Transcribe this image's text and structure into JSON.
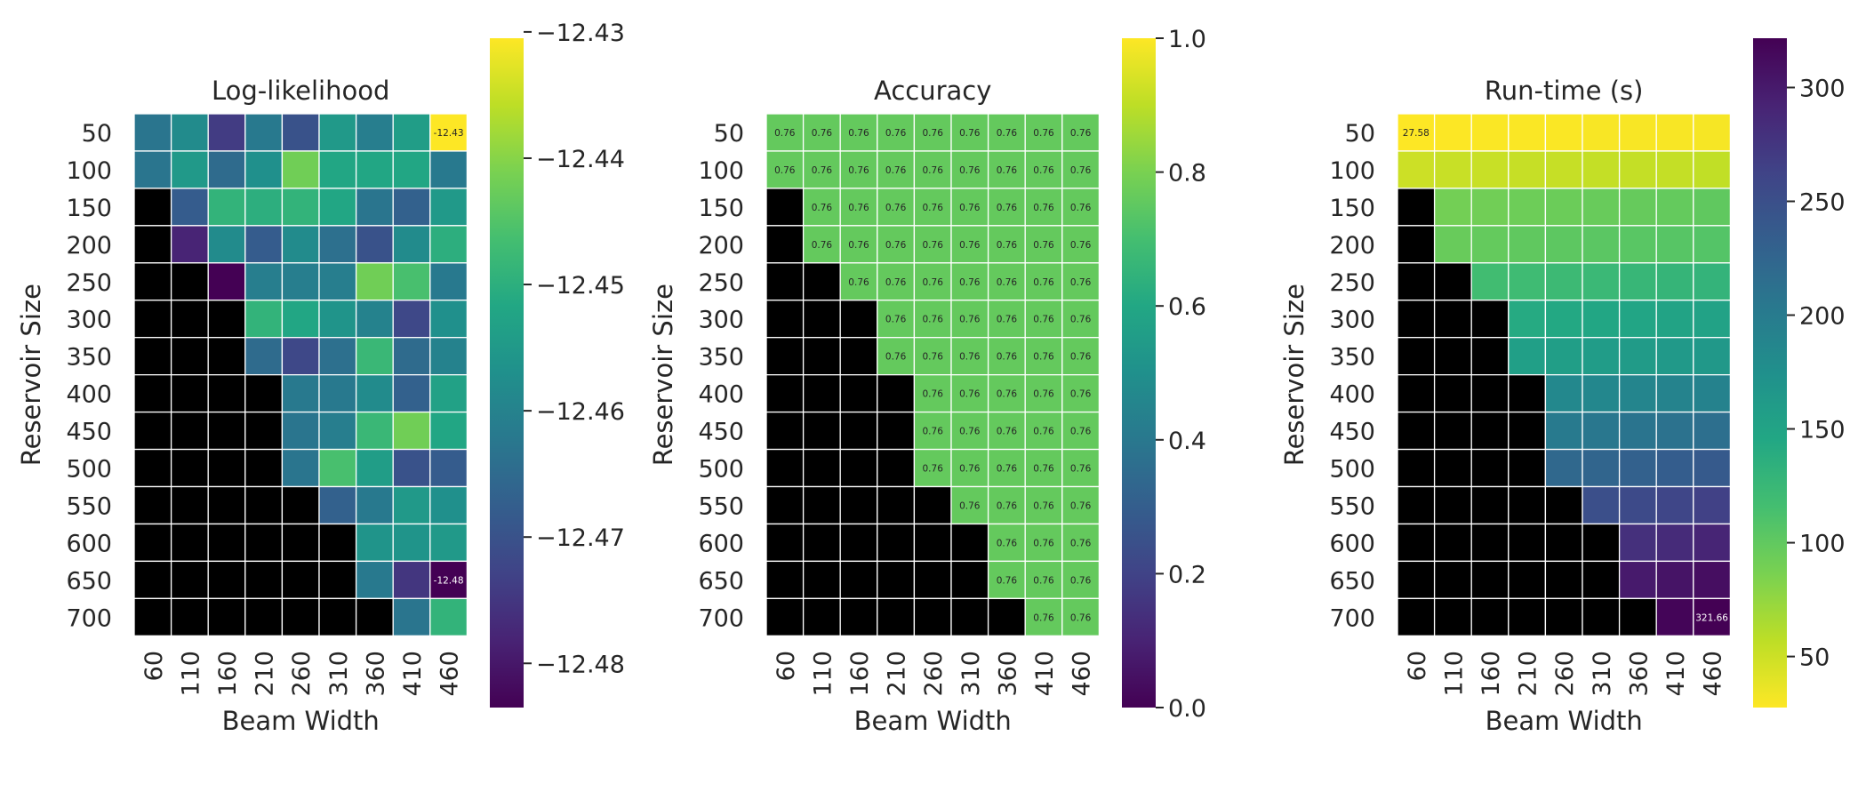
{
  "chart_data": [
    {
      "type": "heatmap",
      "title": "Log-likelihood",
      "xlabel": "Beam Width",
      "ylabel": "Reservoir Size",
      "x": [
        "60",
        "110",
        "160",
        "210",
        "260",
        "310",
        "360",
        "410",
        "460"
      ],
      "y": [
        "50",
        "100",
        "150",
        "200",
        "250",
        "300",
        "350",
        "400",
        "450",
        "500",
        "550",
        "600",
        "650",
        "700"
      ],
      "colormap": "viridis",
      "colorbar": {
        "min": -12.4835,
        "max": -12.4305,
        "ticks": [
          -12.43,
          -12.44,
          -12.45,
          -12.46,
          -12.47,
          -12.48
        ],
        "tick_labels": [
          "−12.43",
          "−12.44",
          "−12.45",
          "−12.46",
          "−12.47",
          "−12.48"
        ]
      },
      "missing_color": "#000000",
      "values": [
        [
          -12.463,
          -12.458,
          -12.474,
          -12.462,
          -12.47,
          -12.455,
          -12.461,
          -12.454,
          -12.4305
        ],
        [
          -12.463,
          -12.455,
          -12.465,
          -12.457,
          -12.442,
          -12.452,
          -12.452,
          -12.452,
          -12.462
        ],
        [
          null,
          -12.468,
          -12.449,
          -12.45,
          -12.449,
          -12.452,
          -12.463,
          -12.467,
          -12.455
        ],
        [
          null,
          -12.478,
          -12.458,
          -12.468,
          -12.458,
          -12.464,
          -12.47,
          -12.458,
          -12.45
        ],
        [
          null,
          null,
          -12.4835,
          -12.461,
          -12.461,
          -12.461,
          -12.442,
          -12.446,
          -12.462
        ],
        [
          null,
          null,
          null,
          -12.449,
          -12.452,
          -12.456,
          -12.46,
          -12.472,
          -12.457
        ],
        [
          null,
          null,
          null,
          -12.465,
          -12.472,
          -12.464,
          -12.448,
          -12.465,
          -12.46
        ],
        [
          null,
          null,
          null,
          null,
          -12.462,
          -12.462,
          -12.458,
          -12.467,
          -12.453
        ],
        [
          null,
          null,
          null,
          null,
          -12.463,
          -12.461,
          -12.448,
          -12.442,
          -12.452
        ],
        [
          null,
          null,
          null,
          null,
          -12.463,
          -12.446,
          -12.454,
          -12.47,
          -12.468
        ],
        [
          null,
          null,
          null,
          null,
          null,
          -12.467,
          -12.462,
          -12.455,
          -12.457
        ],
        [
          null,
          null,
          null,
          null,
          null,
          null,
          -12.456,
          -12.456,
          -12.455
        ],
        [
          null,
          null,
          null,
          null,
          null,
          null,
          -12.462,
          -12.475,
          -12.4835
        ],
        [
          null,
          null,
          null,
          null,
          null,
          null,
          null,
          -12.463,
          -12.449
        ]
      ],
      "annotations": [
        {
          "row": 0,
          "col": 8,
          "text": "-12.43",
          "color": "#262626"
        },
        {
          "row": 12,
          "col": 8,
          "text": "-12.48",
          "color": "#ffffff"
        }
      ]
    },
    {
      "type": "heatmap",
      "title": "Accuracy",
      "xlabel": "Beam Width",
      "ylabel": "Reservoir Size",
      "x": [
        "60",
        "110",
        "160",
        "210",
        "260",
        "310",
        "360",
        "410",
        "460"
      ],
      "y": [
        "50",
        "100",
        "150",
        "200",
        "250",
        "300",
        "350",
        "400",
        "450",
        "500",
        "550",
        "600",
        "650",
        "700"
      ],
      "colormap": "viridis",
      "colorbar": {
        "min": 0.0,
        "max": 1.0,
        "ticks": [
          1.0,
          0.8,
          0.6,
          0.4,
          0.2,
          0.0
        ],
        "tick_labels": [
          "1.0",
          "0.8",
          "0.6",
          "0.4",
          "0.2",
          "0.0"
        ]
      },
      "missing_color": "#000000",
      "cell_label": "0.76",
      "values": [
        [
          0.76,
          0.76,
          0.76,
          0.76,
          0.76,
          0.76,
          0.76,
          0.76,
          0.76
        ],
        [
          0.76,
          0.76,
          0.76,
          0.76,
          0.76,
          0.76,
          0.76,
          0.76,
          0.76
        ],
        [
          null,
          0.76,
          0.76,
          0.76,
          0.76,
          0.76,
          0.76,
          0.76,
          0.76
        ],
        [
          null,
          0.76,
          0.76,
          0.76,
          0.76,
          0.76,
          0.76,
          0.76,
          0.76
        ],
        [
          null,
          null,
          0.76,
          0.76,
          0.76,
          0.76,
          0.76,
          0.76,
          0.76
        ],
        [
          null,
          null,
          null,
          0.76,
          0.76,
          0.76,
          0.76,
          0.76,
          0.76
        ],
        [
          null,
          null,
          null,
          0.76,
          0.76,
          0.76,
          0.76,
          0.76,
          0.76
        ],
        [
          null,
          null,
          null,
          null,
          0.76,
          0.76,
          0.76,
          0.76,
          0.76
        ],
        [
          null,
          null,
          null,
          null,
          0.76,
          0.76,
          0.76,
          0.76,
          0.76
        ],
        [
          null,
          null,
          null,
          null,
          0.76,
          0.76,
          0.76,
          0.76,
          0.76
        ],
        [
          null,
          null,
          null,
          null,
          null,
          0.76,
          0.76,
          0.76,
          0.76
        ],
        [
          null,
          null,
          null,
          null,
          null,
          null,
          0.76,
          0.76,
          0.76
        ],
        [
          null,
          null,
          null,
          null,
          null,
          null,
          0.76,
          0.76,
          0.76
        ],
        [
          null,
          null,
          null,
          null,
          null,
          null,
          null,
          0.76,
          0.76
        ]
      ]
    },
    {
      "type": "heatmap",
      "title": "Run-time (s)",
      "xlabel": "Beam Width",
      "ylabel": "Reservoir Size",
      "x": [
        "60",
        "110",
        "160",
        "210",
        "260",
        "310",
        "360",
        "410",
        "460"
      ],
      "y": [
        "50",
        "100",
        "150",
        "200",
        "250",
        "300",
        "350",
        "400",
        "450",
        "500",
        "550",
        "600",
        "650",
        "700"
      ],
      "colormap": "viridis_r",
      "colorbar": {
        "min": 27.58,
        "max": 321.66,
        "ticks": [
          300,
          250,
          200,
          150,
          100,
          50
        ],
        "tick_labels": [
          "300",
          "250",
          "200",
          "150",
          "100",
          "50"
        ]
      },
      "missing_color": "#000000",
      "values": [
        [
          27.58,
          28,
          29,
          29,
          29,
          30,
          30,
          30,
          31
        ],
        [
          50,
          52,
          52,
          53,
          53,
          54,
          54,
          54,
          55
        ],
        [
          null,
          90,
          91,
          93,
          94,
          96,
          97,
          98,
          100
        ],
        [
          null,
          96,
          98,
          100,
          102,
          103,
          104,
          105,
          107
        ],
        [
          null,
          null,
          118,
          120,
          122,
          124,
          126,
          128,
          130
        ],
        [
          null,
          null,
          null,
          142,
          144,
          146,
          148,
          150,
          152
        ],
        [
          null,
          null,
          null,
          155,
          157,
          159,
          161,
          163,
          165
        ],
        [
          null,
          null,
          null,
          null,
          184,
          186,
          188,
          190,
          192
        ],
        [
          null,
          null,
          null,
          null,
          202,
          205,
          208,
          211,
          214
        ],
        [
          null,
          null,
          null,
          null,
          222,
          226,
          230,
          234,
          238
        ],
        [
          null,
          null,
          null,
          null,
          null,
          250,
          255,
          260,
          265
        ],
        [
          null,
          null,
          null,
          null,
          null,
          null,
          280,
          285,
          290
        ],
        [
          null,
          null,
          null,
          null,
          null,
          null,
          300,
          305,
          310
        ],
        [
          null,
          null,
          null,
          null,
          null,
          null,
          null,
          318,
          321.66
        ]
      ],
      "annotations": [
        {
          "row": 0,
          "col": 0,
          "text": "27.58",
          "color": "#262626"
        },
        {
          "row": 13,
          "col": 8,
          "text": "321.66",
          "color": "#ffffff"
        }
      ]
    }
  ]
}
